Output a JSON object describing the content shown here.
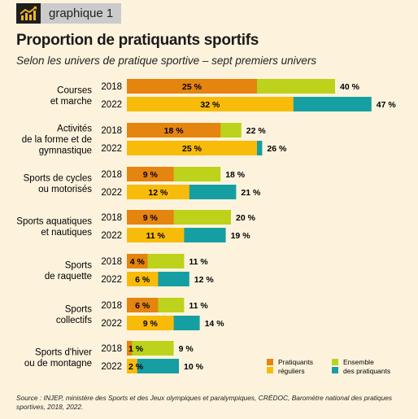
{
  "header": {
    "tag": "graphique 1"
  },
  "chart_data": {
    "type": "bar",
    "title": "Proportion de pratiquants sportifs",
    "subtitle": "Selon les univers de pratique sportive – sept premiers univers",
    "xlim": [
      0,
      50
    ],
    "categories": [
      {
        "label": [
          "Courses",
          "et marche"
        ],
        "rows": [
          {
            "year": "2018",
            "reguliers": 25,
            "ensemble": 40
          },
          {
            "year": "2022",
            "reguliers": 32,
            "ensemble": 47
          }
        ]
      },
      {
        "label": [
          "Activités",
          "de la forme et de",
          "gymnastique"
        ],
        "rows": [
          {
            "year": "2018",
            "reguliers": 18,
            "ensemble": 22
          },
          {
            "year": "2022",
            "reguliers": 25,
            "ensemble": 26
          }
        ]
      },
      {
        "label": [
          "Sports de cycles",
          "ou motorisés"
        ],
        "rows": [
          {
            "year": "2018",
            "reguliers": 9,
            "ensemble": 18
          },
          {
            "year": "2022",
            "reguliers": 12,
            "ensemble": 21
          }
        ]
      },
      {
        "label": [
          "Sports aquatiques",
          "et nautiques"
        ],
        "rows": [
          {
            "year": "2018",
            "reguliers": 9,
            "ensemble": 20
          },
          {
            "year": "2022",
            "reguliers": 11,
            "ensemble": 19
          }
        ]
      },
      {
        "label": [
          "Sports",
          "de raquette"
        ],
        "rows": [
          {
            "year": "2018",
            "reguliers": 4,
            "ensemble": 11
          },
          {
            "year": "2022",
            "reguliers": 6,
            "ensemble": 12
          }
        ]
      },
      {
        "label": [
          "Sports",
          "collectifs"
        ],
        "rows": [
          {
            "year": "2018",
            "reguliers": 6,
            "ensemble": 11
          },
          {
            "year": "2022",
            "reguliers": 9,
            "ensemble": 14
          }
        ]
      },
      {
        "label": [
          "Sports d'hiver",
          "ou de montagne"
        ],
        "rows": [
          {
            "year": "2018",
            "reguliers": 1,
            "ensemble": 9
          },
          {
            "year": "2022",
            "reguliers": 2,
            "ensemble": 10
          }
        ]
      }
    ],
    "value_suffix": " %",
    "colors": {
      "reguliers_2018": "#e5840e",
      "reguliers_2022": "#f9bb0a",
      "ensemble_2018": "#bdd21a",
      "ensemble_2022": "#159fa2"
    },
    "legend": {
      "position": "bottom-right",
      "items": [
        {
          "label": [
            "Pratiquants",
            "réguliers"
          ],
          "colors": [
            "#e5840e",
            "#f9bb0a"
          ]
        },
        {
          "label": [
            "Ensemble",
            "des pratiquants"
          ],
          "colors": [
            "#bdd21a",
            "#159fa2"
          ]
        }
      ]
    }
  },
  "source": "Source : INJEP, ministère des Sports et des Jeux olympiques et paralympiques, CRÉDOC, Baromètre national des pratiques sportives, 2018, 2022."
}
